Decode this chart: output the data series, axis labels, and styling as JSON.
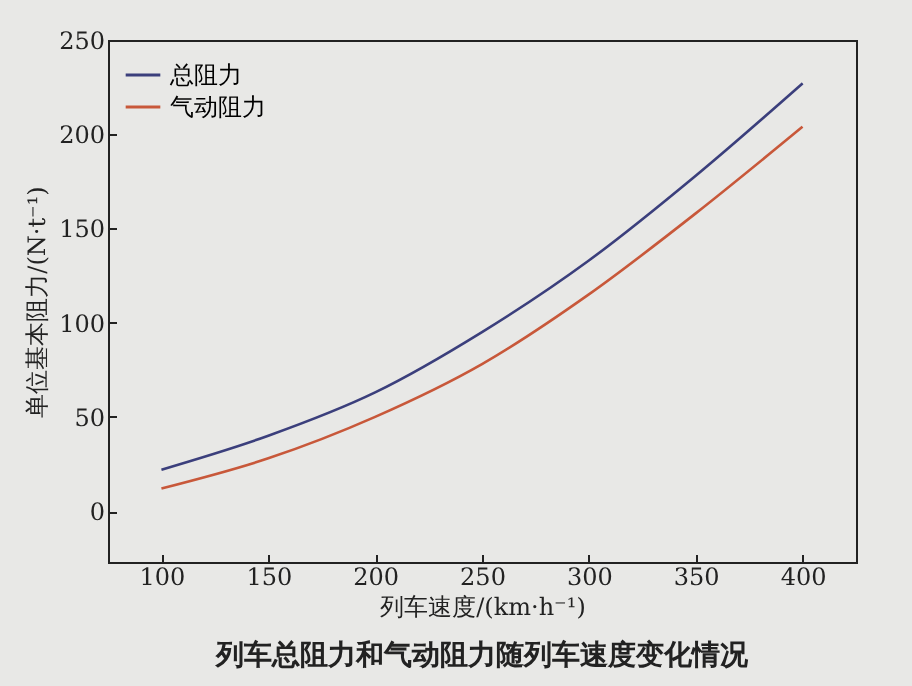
{
  "chart_data": {
    "type": "line",
    "title": "列车总阻力和气动阻力随列车速度变化情况",
    "xlabel": "列车速度/(km·h⁻¹)",
    "ylabel": "单位基本阻力/(N·t⁻¹)",
    "x": [
      100,
      150,
      200,
      250,
      300,
      350,
      400
    ],
    "series": [
      {
        "name": "总阻力",
        "color": "#3b3f7c",
        "values": [
          22,
          40,
          63,
          95,
          133,
          178,
          227
        ]
      },
      {
        "name": "气动阻力",
        "color": "#c8583a",
        "values": [
          12,
          28,
          50,
          78,
          115,
          158,
          204
        ]
      }
    ],
    "xlim": [
      75,
      425
    ],
    "xticks": [
      100,
      150,
      200,
      250,
      300,
      350,
      400
    ],
    "ylim": [
      -27,
      250
    ],
    "yticks": [
      0,
      50,
      100,
      150,
      200,
      250
    ],
    "grid": false,
    "legend": "top left"
  }
}
